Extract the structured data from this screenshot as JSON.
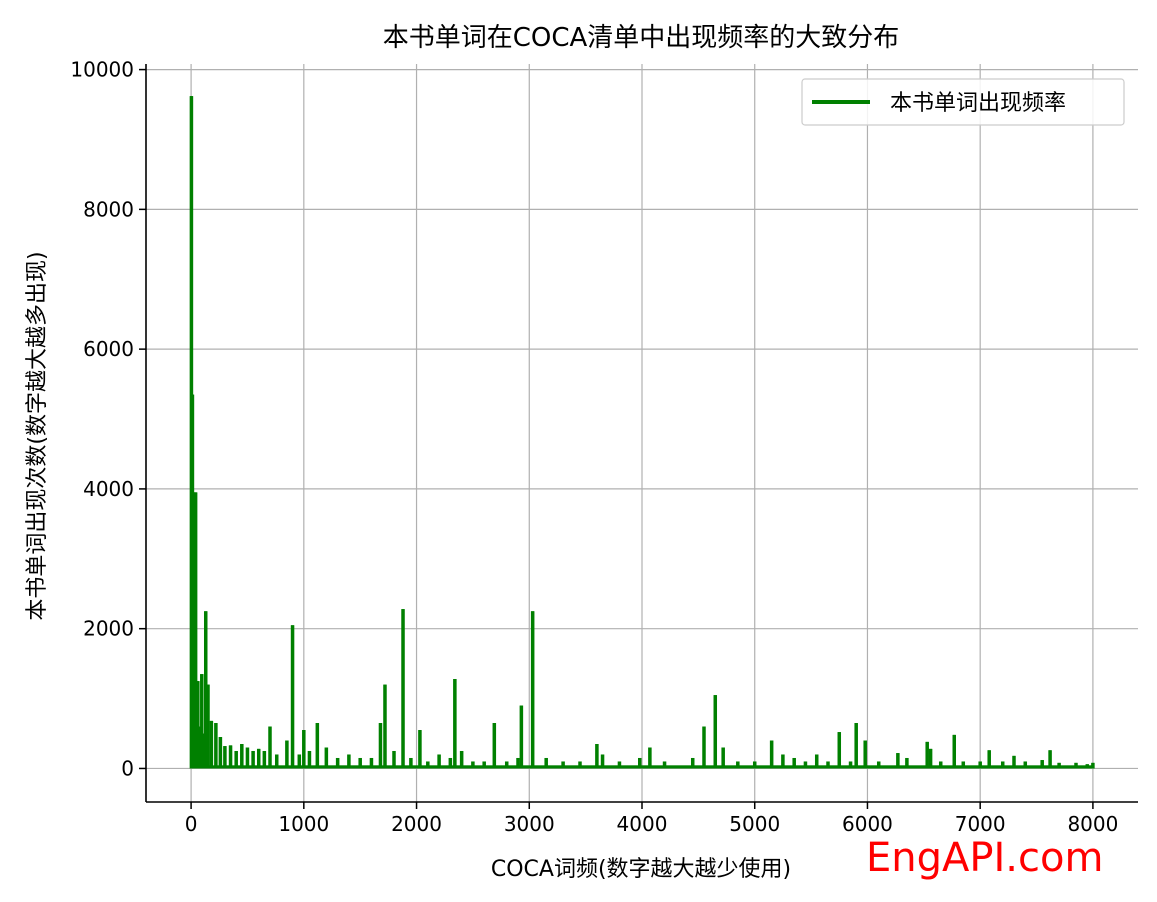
{
  "chart_data": {
    "type": "line",
    "title": "本书单词在COCA清单中出现频率的大致分布",
    "xlabel": "COCA词频(数字越大越少使用)",
    "ylabel": "本书单词出现次数(数字越大越多出现)",
    "xlim": [
      -400,
      8400
    ],
    "ylim": [
      -480,
      10080
    ],
    "xticks": [
      0,
      1000,
      2000,
      3000,
      4000,
      5000,
      6000,
      7000,
      8000
    ],
    "xtick_labels": [
      "0",
      "1000",
      "2000",
      "3000",
      "4000",
      "5000",
      "6000",
      "7000",
      "8000"
    ],
    "yticks": [
      0,
      2000,
      4000,
      6000,
      8000,
      10000
    ],
    "ytick_labels": [
      "0",
      "2000",
      "4000",
      "6000",
      "8000",
      "10000"
    ],
    "grid": true,
    "legend_position": "top-right",
    "series": [
      {
        "name": "本书单词出现频率",
        "color": "#008000",
        "x_start": 0,
        "x_end": 8000,
        "baseline_value": 20,
        "spikes": [
          {
            "x": 3,
            "y": 9620
          },
          {
            "x": 8,
            "y": 4500
          },
          {
            "x": 12,
            "y": 5350
          },
          {
            "x": 18,
            "y": 2600
          },
          {
            "x": 25,
            "y": 3950
          },
          {
            "x": 32,
            "y": 1300
          },
          {
            "x": 40,
            "y": 3950
          },
          {
            "x": 48,
            "y": 500
          },
          {
            "x": 60,
            "y": 1250
          },
          {
            "x": 75,
            "y": 600
          },
          {
            "x": 95,
            "y": 1350
          },
          {
            "x": 110,
            "y": 500
          },
          {
            "x": 130,
            "y": 2250
          },
          {
            "x": 150,
            "y": 1200
          },
          {
            "x": 180,
            "y": 680
          },
          {
            "x": 220,
            "y": 650
          },
          {
            "x": 260,
            "y": 450
          },
          {
            "x": 300,
            "y": 320
          },
          {
            "x": 350,
            "y": 330
          },
          {
            "x": 400,
            "y": 250
          },
          {
            "x": 450,
            "y": 350
          },
          {
            "x": 500,
            "y": 300
          },
          {
            "x": 550,
            "y": 250
          },
          {
            "x": 600,
            "y": 280
          },
          {
            "x": 650,
            "y": 250
          },
          {
            "x": 700,
            "y": 600
          },
          {
            "x": 760,
            "y": 200
          },
          {
            "x": 850,
            "y": 400
          },
          {
            "x": 900,
            "y": 2050
          },
          {
            "x": 960,
            "y": 200
          },
          {
            "x": 1000,
            "y": 550
          },
          {
            "x": 1050,
            "y": 250
          },
          {
            "x": 1120,
            "y": 650
          },
          {
            "x": 1200,
            "y": 300
          },
          {
            "x": 1300,
            "y": 150
          },
          {
            "x": 1400,
            "y": 200
          },
          {
            "x": 1500,
            "y": 150
          },
          {
            "x": 1600,
            "y": 150
          },
          {
            "x": 1680,
            "y": 650
          },
          {
            "x": 1720,
            "y": 1200
          },
          {
            "x": 1800,
            "y": 250
          },
          {
            "x": 1880,
            "y": 2280
          },
          {
            "x": 1950,
            "y": 150
          },
          {
            "x": 2030,
            "y": 550
          },
          {
            "x": 2100,
            "y": 100
          },
          {
            "x": 2200,
            "y": 200
          },
          {
            "x": 2300,
            "y": 150
          },
          {
            "x": 2340,
            "y": 1280
          },
          {
            "x": 2400,
            "y": 250
          },
          {
            "x": 2500,
            "y": 100
          },
          {
            "x": 2600,
            "y": 100
          },
          {
            "x": 2690,
            "y": 650
          },
          {
            "x": 2800,
            "y": 100
          },
          {
            "x": 2900,
            "y": 150
          },
          {
            "x": 2930,
            "y": 900
          },
          {
            "x": 3030,
            "y": 2250
          },
          {
            "x": 3150,
            "y": 150
          },
          {
            "x": 3300,
            "y": 100
          },
          {
            "x": 3450,
            "y": 100
          },
          {
            "x": 3600,
            "y": 350
          },
          {
            "x": 3650,
            "y": 200
          },
          {
            "x": 3800,
            "y": 100
          },
          {
            "x": 3980,
            "y": 150
          },
          {
            "x": 4070,
            "y": 300
          },
          {
            "x": 4200,
            "y": 100
          },
          {
            "x": 4450,
            "y": 150
          },
          {
            "x": 4550,
            "y": 600
          },
          {
            "x": 4650,
            "y": 1050
          },
          {
            "x": 4720,
            "y": 300
          },
          {
            "x": 4850,
            "y": 100
          },
          {
            "x": 5000,
            "y": 100
          },
          {
            "x": 5150,
            "y": 400
          },
          {
            "x": 5250,
            "y": 200
          },
          {
            "x": 5350,
            "y": 150
          },
          {
            "x": 5450,
            "y": 100
          },
          {
            "x": 5550,
            "y": 200
          },
          {
            "x": 5650,
            "y": 100
          },
          {
            "x": 5750,
            "y": 520
          },
          {
            "x": 5850,
            "y": 100
          },
          {
            "x": 5900,
            "y": 650
          },
          {
            "x": 5980,
            "y": 400
          },
          {
            "x": 6100,
            "y": 100
          },
          {
            "x": 6270,
            "y": 220
          },
          {
            "x": 6350,
            "y": 150
          },
          {
            "x": 6530,
            "y": 380
          },
          {
            "x": 6560,
            "y": 280
          },
          {
            "x": 6650,
            "y": 100
          },
          {
            "x": 6770,
            "y": 480
          },
          {
            "x": 6850,
            "y": 100
          },
          {
            "x": 7000,
            "y": 100
          },
          {
            "x": 7080,
            "y": 260
          },
          {
            "x": 7200,
            "y": 100
          },
          {
            "x": 7300,
            "y": 180
          },
          {
            "x": 7400,
            "y": 100
          },
          {
            "x": 7550,
            "y": 120
          },
          {
            "x": 7620,
            "y": 260
          },
          {
            "x": 7700,
            "y": 80
          },
          {
            "x": 7850,
            "y": 80
          },
          {
            "x": 7950,
            "y": 60
          },
          {
            "x": 8000,
            "y": 80
          }
        ]
      }
    ]
  },
  "watermark": "EngAPI.com"
}
